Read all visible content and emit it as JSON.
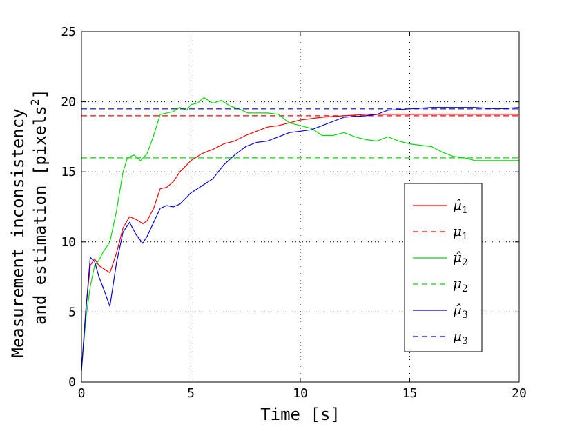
{
  "chart_data": {
    "type": "line",
    "title": "",
    "xlabel": "Time [s]",
    "ylabel_line1": "Measurement inconsistency",
    "ylabel_line2": "and estimation [pixels",
    "ylabel_superscript": "2",
    "ylabel_close": "]",
    "xlim": [
      0,
      20
    ],
    "ylim": [
      0,
      25
    ],
    "xticks": [
      0,
      5,
      10,
      15,
      20
    ],
    "yticks": [
      0,
      5,
      10,
      15,
      20,
      25
    ],
    "grid": true,
    "legend_position": "right",
    "series": [
      {
        "name": "μ̂1",
        "base": "μ̂",
        "sub": "1",
        "color": "#ff0000",
        "style": "solid",
        "x": [
          0,
          0.2,
          0.4,
          0.6,
          0.8,
          1.0,
          1.3,
          1.6,
          1.9,
          2.2,
          2.5,
          2.8,
          3.0,
          3.3,
          3.6,
          3.9,
          4.2,
          4.5,
          5.0,
          5.5,
          6.0,
          6.5,
          7.0,
          7.5,
          8.0,
          8.5,
          9.0,
          9.5,
          10.0,
          10.5,
          11.0,
          12.0,
          13.0,
          14.0,
          15.0,
          16.0,
          17.0,
          18.0,
          19.0,
          20.0
        ],
        "y": [
          0.8,
          5.2,
          8.3,
          8.8,
          8.3,
          8.1,
          7.8,
          9.2,
          11.0,
          11.8,
          11.6,
          11.3,
          11.5,
          12.4,
          13.8,
          13.9,
          14.3,
          15.0,
          15.8,
          16.3,
          16.6,
          17.0,
          17.2,
          17.6,
          17.9,
          18.2,
          18.3,
          18.5,
          18.7,
          18.8,
          18.9,
          19.0,
          19.1,
          19.1,
          19.1,
          19.1,
          19.1,
          19.1,
          19.1,
          19.1
        ]
      },
      {
        "name": "μ1",
        "base": "μ",
        "sub": "1",
        "color": "#ff0000",
        "style": "dashed",
        "x": [
          0,
          20
        ],
        "y": [
          19.0,
          19.0
        ]
      },
      {
        "name": "μ̂2",
        "base": "μ̂",
        "sub": "2",
        "color": "#00dd00",
        "style": "solid",
        "x": [
          0,
          0.2,
          0.4,
          0.6,
          0.8,
          1.0,
          1.3,
          1.6,
          1.9,
          2.1,
          2.4,
          2.7,
          3.0,
          3.3,
          3.6,
          3.9,
          4.2,
          4.5,
          4.8,
          5.0,
          5.3,
          5.6,
          6.0,
          6.4,
          6.8,
          7.2,
          7.6,
          8.0,
          8.5,
          9.0,
          9.5,
          10.0,
          10.5,
          11.0,
          11.5,
          12.0,
          12.5,
          13.0,
          13.5,
          14.0,
          14.5,
          15.0,
          15.5,
          16.0,
          16.5,
          17.0,
          17.5,
          18.0,
          19.0,
          20.0
        ],
        "y": [
          0.8,
          4.5,
          6.8,
          8.3,
          8.7,
          9.3,
          10.0,
          12.2,
          15.0,
          16.0,
          16.2,
          15.8,
          16.3,
          17.6,
          19.1,
          19.2,
          19.3,
          19.6,
          19.4,
          19.8,
          19.9,
          20.3,
          19.9,
          20.1,
          19.7,
          19.5,
          19.2,
          19.2,
          19.2,
          19.1,
          18.5,
          18.3,
          18.1,
          17.6,
          17.6,
          17.8,
          17.5,
          17.3,
          17.2,
          17.5,
          17.2,
          17.0,
          16.9,
          16.8,
          16.4,
          16.1,
          16.0,
          15.8,
          15.8,
          15.8
        ]
      },
      {
        "name": "μ2",
        "base": "μ",
        "sub": "2",
        "color": "#00dd00",
        "style": "dashed",
        "x": [
          0,
          20
        ],
        "y": [
          16.0,
          16.0
        ]
      },
      {
        "name": "μ̂3",
        "base": "μ̂",
        "sub": "3",
        "color": "#0000dd",
        "style": "solid",
        "x": [
          0,
          0.2,
          0.4,
          0.6,
          0.8,
          1.0,
          1.3,
          1.6,
          1.9,
          2.2,
          2.5,
          2.8,
          3.0,
          3.3,
          3.6,
          3.9,
          4.2,
          4.5,
          5.0,
          5.5,
          6.0,
          6.5,
          7.0,
          7.5,
          8.0,
          8.5,
          9.0,
          9.5,
          10.0,
          10.5,
          11.0,
          11.5,
          12.0,
          13.0,
          13.5,
          14.0,
          15.0,
          16.0,
          17.0,
          18.0,
          19.0,
          20.0
        ],
        "y": [
          0.8,
          5.0,
          8.9,
          8.6,
          7.5,
          6.7,
          5.4,
          8.5,
          10.7,
          11.4,
          10.5,
          9.9,
          10.4,
          11.4,
          12.4,
          12.6,
          12.5,
          12.7,
          13.5,
          14.0,
          14.5,
          15.5,
          16.2,
          16.8,
          17.1,
          17.2,
          17.5,
          17.8,
          17.9,
          18.0,
          18.3,
          18.6,
          18.9,
          19.0,
          19.1,
          19.4,
          19.5,
          19.6,
          19.6,
          19.6,
          19.5,
          19.6
        ]
      },
      {
        "name": "μ3",
        "base": "μ",
        "sub": "3",
        "color": "#0000dd",
        "style": "dashed",
        "x": [
          0,
          20
        ],
        "y": [
          19.5,
          19.5
        ]
      }
    ]
  }
}
